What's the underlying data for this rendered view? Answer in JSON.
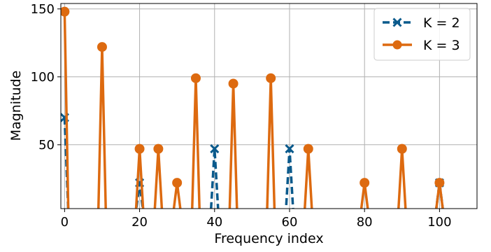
{
  "chart_data": {
    "type": "line",
    "title": "",
    "xlabel": "Frequency index",
    "ylabel": "Magnitude",
    "xlim": [
      -1,
      110
    ],
    "ylim": [
      3,
      154
    ],
    "xticks": [
      0,
      20,
      40,
      60,
      80,
      100
    ],
    "yticks": [
      50,
      100,
      150
    ],
    "grid": true,
    "legend_position": "top-right",
    "series": [
      {
        "name": "K = 2",
        "color": "#0a5a8c",
        "line_style": "dashed",
        "marker": "x",
        "x": [
          0,
          1,
          19,
          20,
          21,
          39,
          40,
          41,
          59,
          60,
          61,
          99,
          100,
          101
        ],
        "y": [
          70,
          0,
          0,
          22,
          0,
          0,
          47,
          0,
          0,
          47,
          0,
          0,
          22,
          0
        ],
        "marker_x": [
          0,
          20,
          40,
          60,
          100
        ],
        "marker_y": [
          70,
          22,
          47,
          47,
          22
        ]
      },
      {
        "name": "K = 3",
        "color": "#dd6a10",
        "line_style": "solid",
        "marker": "o",
        "x": [
          0,
          1,
          9,
          10,
          11,
          19,
          20,
          21,
          24,
          25,
          26,
          29,
          30,
          31,
          34,
          35,
          36,
          44,
          45,
          46,
          54,
          55,
          56,
          64,
          65,
          66,
          79,
          80,
          81,
          89,
          90,
          91,
          99,
          100,
          101
        ],
        "y": [
          148,
          0,
          0,
          122,
          0,
          0,
          47,
          0,
          0,
          47,
          0,
          0,
          22,
          0,
          0,
          99,
          0,
          0,
          95,
          0,
          0,
          99,
          0,
          0,
          47,
          0,
          0,
          22,
          0,
          0,
          47,
          0,
          0,
          22,
          0
        ],
        "marker_x": [
          0,
          10,
          20,
          25,
          30,
          35,
          45,
          55,
          65,
          80,
          90,
          100
        ],
        "marker_y": [
          148,
          122,
          47,
          47,
          22,
          99,
          95,
          99,
          47,
          22,
          47,
          22
        ]
      }
    ]
  }
}
